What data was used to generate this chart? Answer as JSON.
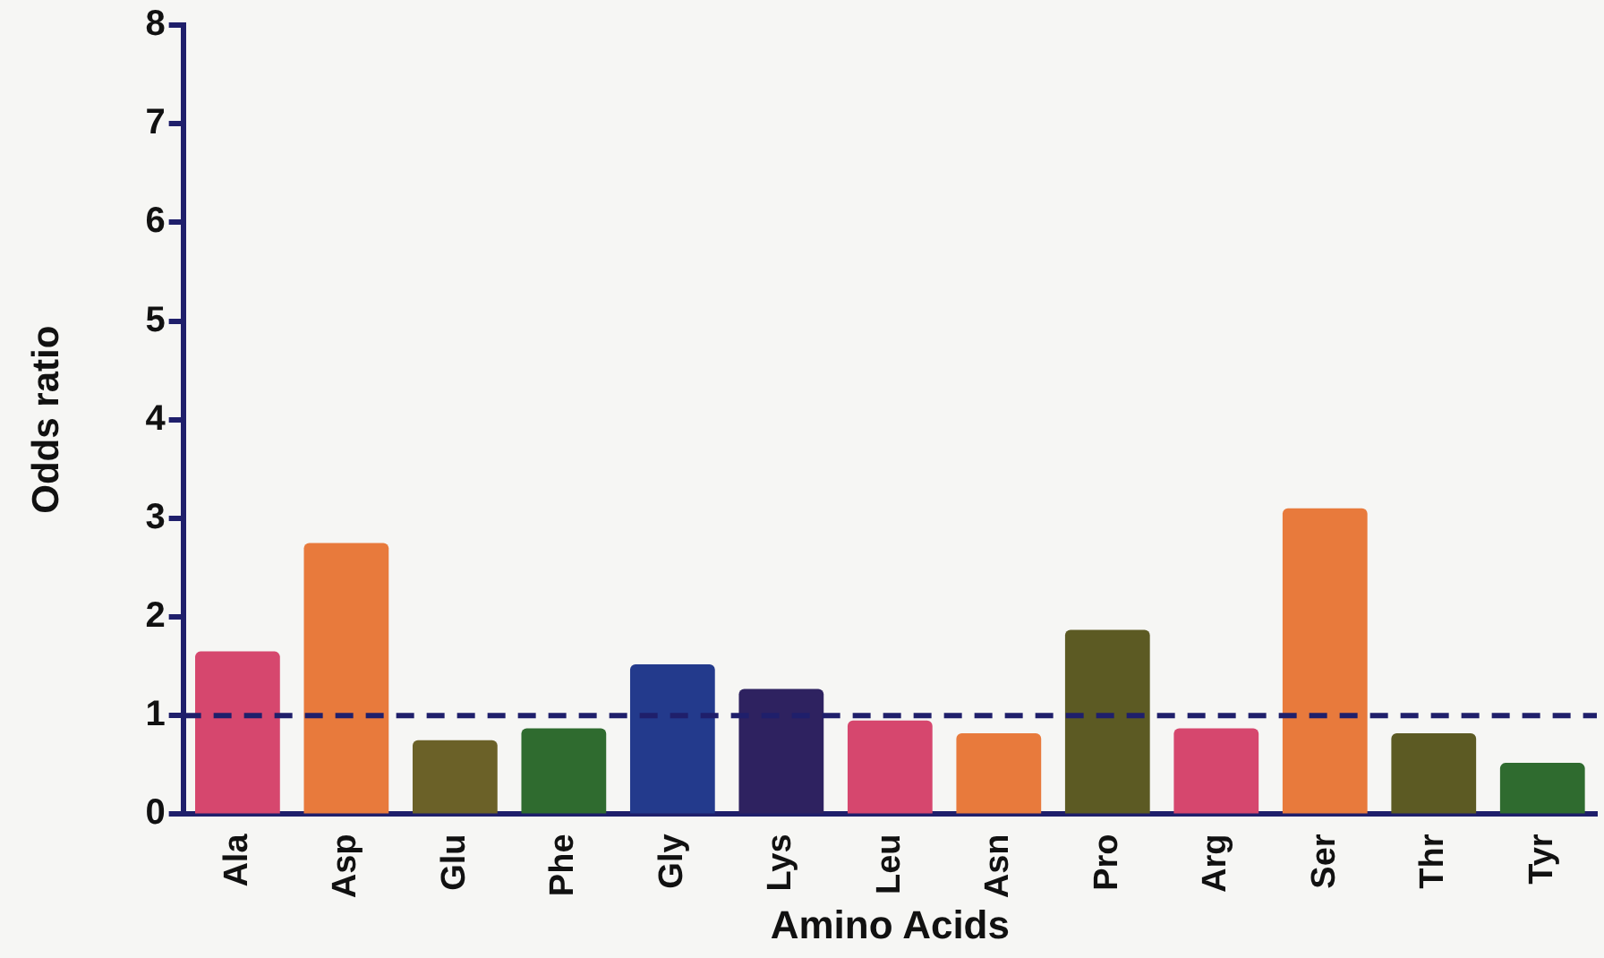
{
  "chart_data": {
    "type": "bar",
    "xlabel": "Amino Acids",
    "ylabel": "Odds ratio",
    "categories": [
      "Ala",
      "Asp",
      "Glu",
      "Phe",
      "Gly",
      "Lys",
      "Leu",
      "Asn",
      "Pro",
      "Arg",
      "Ser",
      "Thr",
      "Tyr"
    ],
    "values": [
      1.65,
      2.75,
      0.75,
      0.87,
      1.52,
      1.27,
      0.95,
      0.82,
      1.87,
      0.87,
      3.1,
      0.82,
      0.52
    ],
    "colors": [
      "#d6476e",
      "#e87a3c",
      "#6b6128",
      "#2f6b2f",
      "#233a8c",
      "#2e2260",
      "#d6476e",
      "#e87a3c",
      "#5c5a23",
      "#d6476e",
      "#e87a3c",
      "#5c5a23",
      "#2f6b2f"
    ],
    "ylim": [
      0,
      8
    ],
    "yticks": [
      0,
      1,
      2,
      3,
      4,
      5,
      6,
      7,
      8
    ],
    "grid": false,
    "legend": false,
    "ref_lines": [
      {
        "axis": "y",
        "value": 1,
        "color": "#1f1f6b",
        "line_style": "dashed"
      }
    ]
  }
}
